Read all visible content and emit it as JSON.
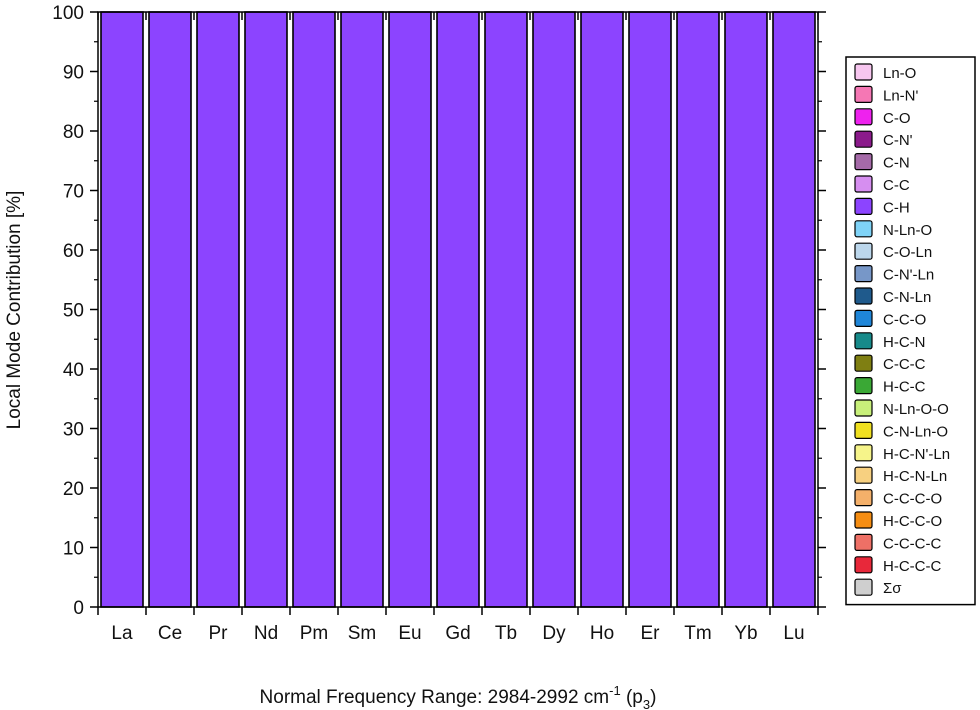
{
  "chart_data": {
    "type": "bar",
    "stacked": true,
    "categories": [
      "La",
      "Ce",
      "Pr",
      "Nd",
      "Pm",
      "Sm",
      "Eu",
      "Gd",
      "Tb",
      "Dy",
      "Ho",
      "Er",
      "Tm",
      "Yb",
      "Lu"
    ],
    "series": [
      {
        "name": "Ln-O",
        "color": "#f7c6ef",
        "values": [
          0,
          0,
          0,
          0,
          0,
          0,
          0,
          0,
          0,
          0,
          0,
          0,
          0,
          0,
          0
        ]
      },
      {
        "name": "Ln-N'",
        "color": "#f577b4",
        "values": [
          0,
          0,
          0,
          0,
          0,
          0,
          0,
          0,
          0,
          0,
          0,
          0,
          0,
          0,
          0
        ]
      },
      {
        "name": "C-O",
        "color": "#ee22ee",
        "values": [
          0,
          0,
          0,
          0,
          0,
          0,
          0,
          0,
          0,
          0,
          0,
          0,
          0,
          0,
          0
        ]
      },
      {
        "name": "C-N'",
        "color": "#8b1a8b",
        "values": [
          0,
          0,
          0,
          0,
          0,
          0,
          0,
          0,
          0,
          0,
          0,
          0,
          0,
          0,
          0
        ]
      },
      {
        "name": "C-N",
        "color": "#a56aa8",
        "values": [
          0,
          0,
          0,
          0,
          0,
          0,
          0,
          0,
          0,
          0,
          0,
          0,
          0,
          0,
          0
        ]
      },
      {
        "name": "C-C",
        "color": "#d68ef0",
        "values": [
          0,
          0,
          0,
          0,
          0,
          0,
          0,
          0,
          0,
          0,
          0,
          0,
          0,
          0,
          0
        ]
      },
      {
        "name": "C-H",
        "color": "#8c44ff",
        "values": [
          100,
          100,
          100,
          100,
          100,
          100,
          100,
          100,
          100,
          100,
          100,
          100,
          100,
          100,
          100
        ]
      },
      {
        "name": "N-Ln-O",
        "color": "#7fd3f7",
        "values": [
          0,
          0,
          0,
          0,
          0,
          0,
          0,
          0,
          0,
          0,
          0,
          0,
          0,
          0,
          0
        ]
      },
      {
        "name": "C-O-Ln",
        "color": "#bcd7ec",
        "values": [
          0,
          0,
          0,
          0,
          0,
          0,
          0,
          0,
          0,
          0,
          0,
          0,
          0,
          0,
          0
        ]
      },
      {
        "name": "C-N'-Ln",
        "color": "#7797c8",
        "values": [
          0,
          0,
          0,
          0,
          0,
          0,
          0,
          0,
          0,
          0,
          0,
          0,
          0,
          0,
          0
        ]
      },
      {
        "name": "C-N-Ln",
        "color": "#1f5a8c",
        "values": [
          0,
          0,
          0,
          0,
          0,
          0,
          0,
          0,
          0,
          0,
          0,
          0,
          0,
          0,
          0
        ]
      },
      {
        "name": "C-C-O",
        "color": "#1f86d8",
        "values": [
          0,
          0,
          0,
          0,
          0,
          0,
          0,
          0,
          0,
          0,
          0,
          0,
          0,
          0,
          0
        ]
      },
      {
        "name": "H-C-N",
        "color": "#178a8a",
        "values": [
          0,
          0,
          0,
          0,
          0,
          0,
          0,
          0,
          0,
          0,
          0,
          0,
          0,
          0,
          0
        ]
      },
      {
        "name": "C-C-C",
        "color": "#7f7f12",
        "values": [
          0,
          0,
          0,
          0,
          0,
          0,
          0,
          0,
          0,
          0,
          0,
          0,
          0,
          0,
          0
        ]
      },
      {
        "name": "H-C-C",
        "color": "#3aa835",
        "values": [
          0,
          0,
          0,
          0,
          0,
          0,
          0,
          0,
          0,
          0,
          0,
          0,
          0,
          0,
          0
        ]
      },
      {
        "name": "N-Ln-O-O",
        "color": "#c8f07a",
        "values": [
          0,
          0,
          0,
          0,
          0,
          0,
          0,
          0,
          0,
          0,
          0,
          0,
          0,
          0,
          0
        ]
      },
      {
        "name": "C-N-Ln-O",
        "color": "#f0e020",
        "values": [
          0,
          0,
          0,
          0,
          0,
          0,
          0,
          0,
          0,
          0,
          0,
          0,
          0,
          0,
          0
        ]
      },
      {
        "name": "H-C-N'-Ln",
        "color": "#f6f48a",
        "values": [
          0,
          0,
          0,
          0,
          0,
          0,
          0,
          0,
          0,
          0,
          0,
          0,
          0,
          0,
          0
        ]
      },
      {
        "name": "H-C-N-Ln",
        "color": "#f7d080",
        "values": [
          0,
          0,
          0,
          0,
          0,
          0,
          0,
          0,
          0,
          0,
          0,
          0,
          0,
          0,
          0
        ]
      },
      {
        "name": "C-C-C-O",
        "color": "#f4b06a",
        "values": [
          0,
          0,
          0,
          0,
          0,
          0,
          0,
          0,
          0,
          0,
          0,
          0,
          0,
          0,
          0
        ]
      },
      {
        "name": "H-C-C-O",
        "color": "#f58d12",
        "values": [
          0,
          0,
          0,
          0,
          0,
          0,
          0,
          0,
          0,
          0,
          0,
          0,
          0,
          0,
          0
        ]
      },
      {
        "name": "C-C-C-C",
        "color": "#ee7066",
        "values": [
          0,
          0,
          0,
          0,
          0,
          0,
          0,
          0,
          0,
          0,
          0,
          0,
          0,
          0,
          0
        ]
      },
      {
        "name": "H-C-C-C",
        "color": "#e8283a",
        "values": [
          0,
          0,
          0,
          0,
          0,
          0,
          0,
          0,
          0,
          0,
          0,
          0,
          0,
          0,
          0
        ]
      },
      {
        "name": "Σσ",
        "color": "#cfcfcf",
        "values": [
          0,
          0,
          0,
          0,
          0,
          0,
          0,
          0,
          0,
          0,
          0,
          0,
          0,
          0,
          0
        ]
      }
    ],
    "title": "",
    "xlabel_main": "Normal Frequency Range: 2984-2992 cm",
    "xlabel_sup": "-1",
    "xlabel_paren_open": " (p",
    "xlabel_sub": "3",
    "xlabel_paren_close": ")",
    "ylabel": "Local Mode Contribution [%]",
    "ylim": [
      0,
      100
    ],
    "yticks": [
      "0",
      "10",
      "20",
      "30",
      "40",
      "50",
      "60",
      "70",
      "80",
      "90",
      "100"
    ],
    "grid": false,
    "legend_position": "right"
  }
}
